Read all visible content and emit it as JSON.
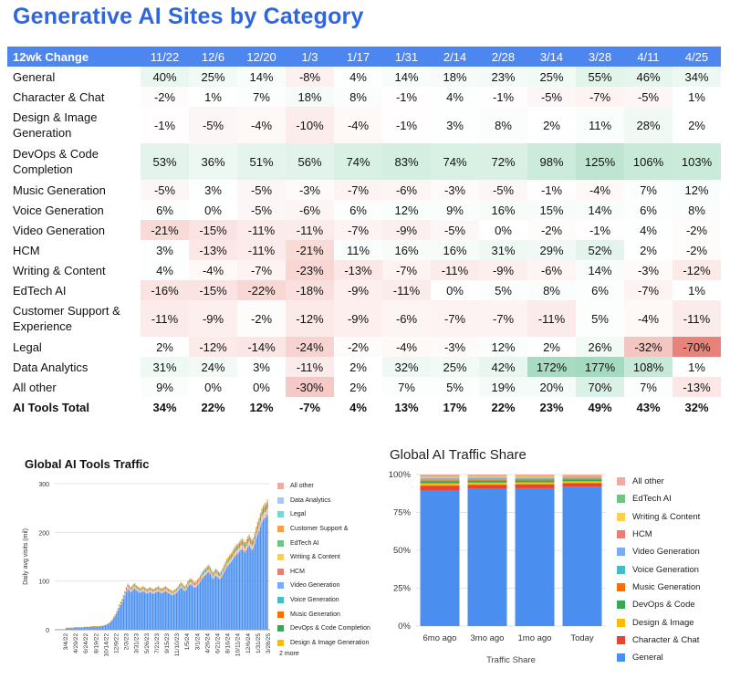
{
  "page": {
    "title": "Generative AI Sites by Category"
  },
  "colors": {
    "header_bg": "#4e86f0",
    "title": "#2f66de",
    "positive": "#57bb8a",
    "negative": "#e67c73",
    "series": {
      "General": "#4a8ff0",
      "Character & Chat": "#ea4335",
      "Design & Image": "#fbbc04",
      "DevOps & Code": "#34a853",
      "Music Generation": "#ff6d01",
      "Voice Generation": "#46bdc6",
      "Video Generation": "#7baaf7",
      "HCM": "#f07b72",
      "Writing & Content": "#fcd04f",
      "EdTech AI": "#71c287",
      "Customer Support &": "#ff994d",
      "Legal": "#7ed1d7",
      "Data Analytics": "#a6c8fa",
      "All other": "#f5a8a3"
    }
  },
  "table": {
    "columns": [
      "12wk Change",
      "11/22",
      "12/6",
      "12/20",
      "1/3",
      "1/17",
      "1/31",
      "2/14",
      "2/28",
      "3/14",
      "3/28",
      "4/11",
      "4/25"
    ],
    "rows": [
      {
        "name": "General",
        "values": [
          "40%",
          "25%",
          "14%",
          "-8%",
          "4%",
          "14%",
          "18%",
          "23%",
          "25%",
          "55%",
          "46%",
          "34%"
        ],
        "tall": false
      },
      {
        "name": "Character & Chat",
        "values": [
          "-2%",
          "1%",
          "7%",
          "18%",
          "8%",
          "-1%",
          "4%",
          "-1%",
          "-5%",
          "-7%",
          "-5%",
          "1%"
        ],
        "tall": false
      },
      {
        "name": "Design & Image Generation",
        "values": [
          "-1%",
          "-5%",
          "-4%",
          "-10%",
          "-4%",
          "-1%",
          "3%",
          "8%",
          "2%",
          "11%",
          "28%",
          "2%"
        ],
        "tall": true
      },
      {
        "name": "DevOps & Code Completion",
        "values": [
          "53%",
          "36%",
          "51%",
          "56%",
          "74%",
          "83%",
          "74%",
          "72%",
          "98%",
          "125%",
          "106%",
          "103%"
        ],
        "tall": true
      },
      {
        "name": "Music Generation",
        "values": [
          "-5%",
          "3%",
          "-5%",
          "-3%",
          "-7%",
          "-6%",
          "-3%",
          "-5%",
          "-1%",
          "-4%",
          "7%",
          "12%"
        ],
        "tall": false
      },
      {
        "name": "Voice Generation",
        "values": [
          "6%",
          "0%",
          "-5%",
          "-6%",
          "6%",
          "12%",
          "9%",
          "16%",
          "15%",
          "14%",
          "6%",
          "8%"
        ],
        "tall": false
      },
      {
        "name": "Video Generation",
        "values": [
          "-21%",
          "-15%",
          "-11%",
          "-11%",
          "-7%",
          "-9%",
          "-5%",
          "0%",
          "-2%",
          "-1%",
          "4%",
          "-2%"
        ],
        "tall": false
      },
      {
        "name": "HCM",
        "values": [
          "3%",
          "-13%",
          "-11%",
          "-21%",
          "11%",
          "16%",
          "16%",
          "31%",
          "29%",
          "52%",
          "2%",
          "-2%"
        ],
        "tall": false
      },
      {
        "name": "Writing & Content",
        "values": [
          "4%",
          "-4%",
          "-7%",
          "-23%",
          "-13%",
          "-7%",
          "-11%",
          "-9%",
          "-6%",
          "14%",
          "-3%",
          "-12%"
        ],
        "tall": false
      },
      {
        "name": "EdTech AI",
        "values": [
          "-16%",
          "-15%",
          "-22%",
          "-18%",
          "-9%",
          "-11%",
          "0%",
          "5%",
          "8%",
          "6%",
          "-7%",
          "1%"
        ],
        "tall": false
      },
      {
        "name": "Customer Support & Experience",
        "values": [
          "-11%",
          "-9%",
          "-2%",
          "-12%",
          "-9%",
          "-6%",
          "-7%",
          "-7%",
          "-11%",
          "5%",
          "-4%",
          "-11%"
        ],
        "tall": true
      },
      {
        "name": "Legal",
        "values": [
          "2%",
          "-12%",
          "-14%",
          "-24%",
          "-2%",
          "-4%",
          "-3%",
          "12%",
          "2%",
          "26%",
          "-32%",
          "-70%"
        ],
        "tall": false
      },
      {
        "name": "Data Analytics",
        "values": [
          "31%",
          "24%",
          "3%",
          "-11%",
          "2%",
          "32%",
          "25%",
          "42%",
          "172%",
          "177%",
          "108%",
          "1%"
        ],
        "tall": false
      },
      {
        "name": "All other",
        "values": [
          "9%",
          "0%",
          "0%",
          "-30%",
          "2%",
          "7%",
          "5%",
          "19%",
          "20%",
          "70%",
          "7%",
          "-13%"
        ],
        "tall": false
      },
      {
        "name": "AI Tools Total",
        "values": [
          "34%",
          "22%",
          "12%",
          "-7%",
          "4%",
          "13%",
          "17%",
          "22%",
          "23%",
          "49%",
          "43%",
          "32%"
        ],
        "tall": false,
        "total": true
      }
    ]
  },
  "chart_data": [
    {
      "type": "bar",
      "stacked": true,
      "title": "Global AI Tools Traffic",
      "ylabel": "Daily avg visits (mil)",
      "xlabel": "",
      "ylim": [
        0,
        300
      ],
      "yticks": [
        0,
        100,
        200,
        300
      ],
      "grid": true,
      "legend_position": "right",
      "x_tick_labels": [
        "3/4/22",
        "4/29/22",
        "6/24/22",
        "8/19/22",
        "10/14/22",
        "12/9/22",
        "2/3/23",
        "3/31/23",
        "5/26/23",
        "7/21/23",
        "9/15/23",
        "11/10/23",
        "1/5/24",
        "3/1/24",
        "4/26/24",
        "6/21/24",
        "8/16/24",
        "10/11/24",
        "12/6/24",
        "1/31/25",
        "3/28/25"
      ],
      "totals": [
        4,
        4,
        4,
        4,
        4,
        4,
        5,
        5,
        5,
        5,
        5,
        5,
        5,
        6,
        6,
        6,
        6,
        6,
        7,
        7,
        7,
        7,
        7,
        7,
        7,
        8,
        8,
        9,
        10,
        11,
        13,
        15,
        18,
        22,
        27,
        32,
        38,
        45,
        52,
        58,
        64,
        72,
        80,
        88,
        95,
        92,
        88,
        90,
        94,
        96,
        92,
        90,
        88,
        86,
        88,
        90,
        88,
        86,
        84,
        86,
        88,
        86,
        84,
        85,
        87,
        88,
        90,
        87,
        85,
        86,
        88,
        90,
        88,
        85,
        84,
        82,
        80,
        82,
        84,
        86,
        90,
        94,
        98,
        96,
        92,
        90,
        94,
        100,
        104,
        106,
        104,
        100,
        98,
        100,
        104,
        108,
        112,
        118,
        122,
        126,
        128,
        132,
        134,
        130,
        124,
        118,
        122,
        126,
        124,
        120,
        118,
        122,
        128,
        134,
        140,
        146,
        150,
        154,
        158,
        162,
        168,
        172,
        176,
        178,
        182,
        186,
        188,
        184,
        180,
        186,
        192,
        196,
        190,
        186,
        190,
        200,
        212,
        222,
        230,
        240,
        250,
        256,
        260,
        262,
        268
      ],
      "series": [
        {
          "name": "All other"
        },
        {
          "name": "Data Analytics"
        },
        {
          "name": "Legal"
        },
        {
          "name": "Customer Support &"
        },
        {
          "name": "EdTech AI"
        },
        {
          "name": "Writing & Content"
        },
        {
          "name": "HCM"
        },
        {
          "name": "Video Generation"
        },
        {
          "name": "Voice Generation"
        },
        {
          "name": "Music Generation"
        },
        {
          "name": "DevOps & Code Completion"
        },
        {
          "name": "Design & Image Generation"
        }
      ],
      "more_label": "2 more"
    },
    {
      "type": "bar",
      "stacked": true,
      "percent": true,
      "title": "Global AI Traffic Share",
      "xlabel": "Traffic Share",
      "ylabel": "",
      "categories": [
        "6mo ago",
        "3mo ago",
        "1mo ago",
        "Today"
      ],
      "yticks": [
        "0%",
        "25%",
        "50%",
        "75%",
        "100%"
      ],
      "ylim": [
        0,
        100
      ],
      "grid": true,
      "legend_position": "right",
      "series": [
        {
          "name": "General",
          "values": [
            89.5,
            90.5,
            91,
            92
          ]
        },
        {
          "name": "Character & Chat",
          "values": [
            3.2,
            2.8,
            2.6,
            2.4
          ]
        },
        {
          "name": "Design & Image",
          "values": [
            1.6,
            1.4,
            1.3,
            1.2
          ]
        },
        {
          "name": "DevOps & Code",
          "values": [
            1.4,
            1.3,
            1.3,
            1.2
          ]
        },
        {
          "name": "Music Generation",
          "values": [
            0.5,
            0.5,
            0.5,
            0.4
          ]
        },
        {
          "name": "Voice Generation",
          "values": [
            0.6,
            0.5,
            0.5,
            0.5
          ]
        },
        {
          "name": "Video Generation",
          "values": [
            0.6,
            0.6,
            0.5,
            0.5
          ]
        },
        {
          "name": "HCM",
          "values": [
            0.4,
            0.4,
            0.4,
            0.3
          ]
        },
        {
          "name": "Writing & Content",
          "values": [
            0.8,
            0.7,
            0.7,
            0.6
          ]
        },
        {
          "name": "EdTech AI",
          "values": [
            0.5,
            0.5,
            0.4,
            0.4
          ]
        },
        {
          "name": "All other",
          "values": [
            0.9,
            0.8,
            0.8,
            0.5
          ]
        }
      ]
    }
  ]
}
